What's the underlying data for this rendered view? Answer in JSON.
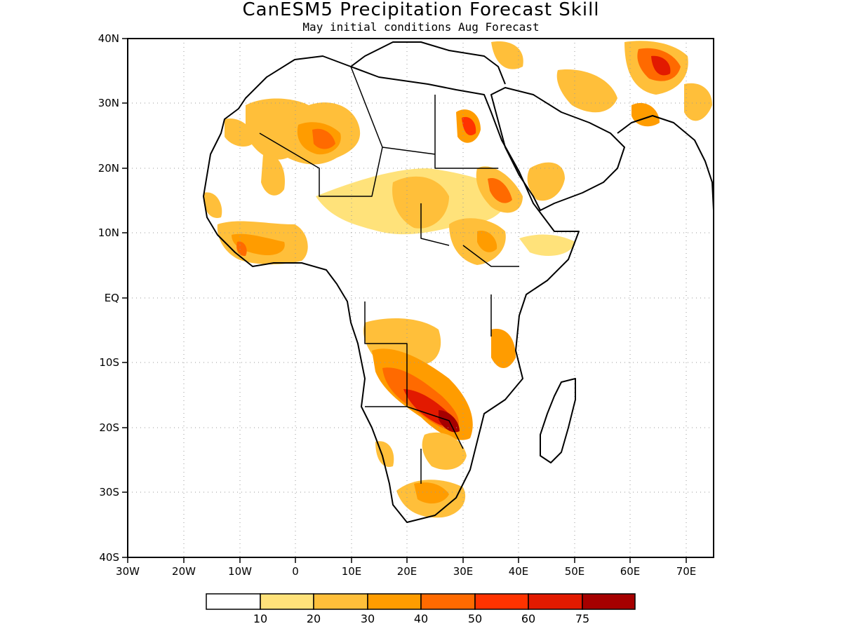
{
  "title": "CanESM5 Precipitation Forecast Skill",
  "subtitle": "May initial conditions  Aug Forecast",
  "map": {
    "lon_range": [
      -30,
      75
    ],
    "lat_range": [
      -40,
      40
    ],
    "lon_ticks": [
      "30W",
      "20W",
      "10W",
      "0",
      "10E",
      "20E",
      "30E",
      "40E",
      "50E",
      "60E",
      "70E"
    ],
    "lat_ticks": [
      "40N",
      "30N",
      "20N",
      "10N",
      "EQ",
      "10S",
      "20S",
      "30S",
      "40S"
    ],
    "gridlines": "dotted",
    "coastline_color": "#000000"
  },
  "colorbar": {
    "colors": [
      "#ffffff",
      "#ffe27a",
      "#ffbf3a",
      "#ff9c00",
      "#ff6a00",
      "#ff3300",
      "#e21a00",
      "#a60000"
    ],
    "labels": [
      "10",
      "20",
      "30",
      "40",
      "50",
      "60",
      "75"
    ]
  },
  "skill_regions_note_free": true
}
